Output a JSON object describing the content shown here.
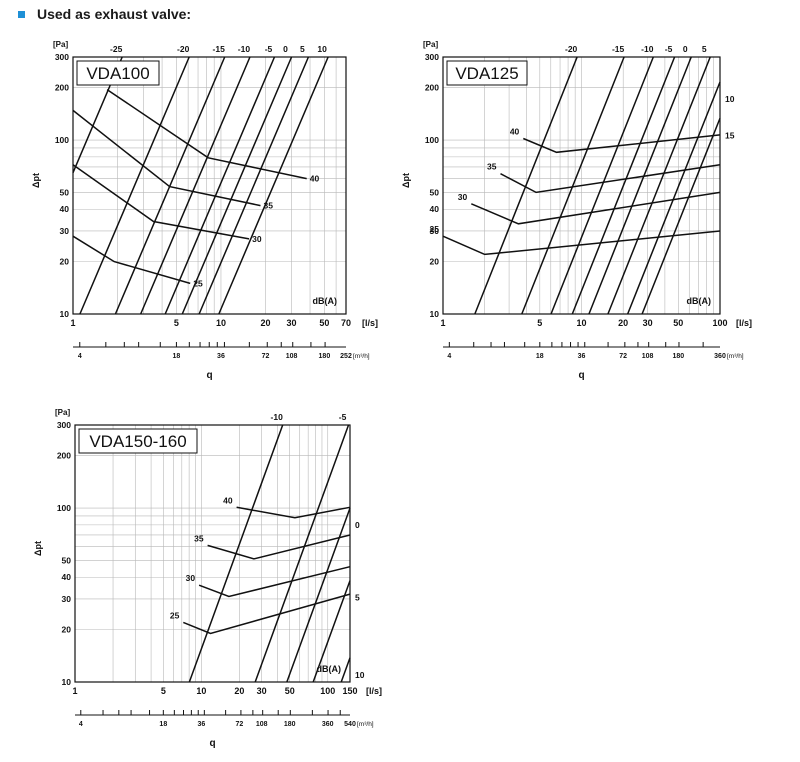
{
  "heading": {
    "text": "Used as exhaust valve:",
    "bullet_color": "#1e90d6"
  },
  "chart_data": [
    {
      "type": "line",
      "title": "VDA100",
      "y_unit": "[Pa]",
      "ylabel": "Δpt",
      "x_unit": "[l/s]",
      "x2_unit": "[m³/h]",
      "xlabel": "q",
      "dba_label": "dB(A)",
      "xlim": [
        1,
        70
      ],
      "ylim": [
        10,
        300
      ],
      "x_ticks": [
        "1",
        "5",
        "10",
        "20",
        "30",
        "50",
        "70"
      ],
      "x_tick_values": [
        1,
        5,
        10,
        20,
        30,
        50,
        70
      ],
      "y_ticks": [
        "10",
        "20",
        "30",
        "40",
        "50",
        "100",
        "200",
        "300"
      ],
      "y_tick_values": [
        10,
        20,
        30,
        40,
        50,
        100,
        200,
        300
      ],
      "m3h_ticks": [
        "4",
        "18",
        "36",
        "72",
        "108",
        "180",
        "252"
      ],
      "m3h_tick_values": [
        4,
        18,
        36,
        72,
        108,
        180,
        252
      ],
      "m3h_last_suffix": " [m³/h]",
      "characteristic_lines": [
        {
          "label": "-25",
          "q_at_300": 2.15
        },
        {
          "label": "-20",
          "q_at_300": 6.1
        },
        {
          "label": "-15",
          "q_at_300": 10.6
        },
        {
          "label": "-10",
          "q_at_300": 15.7
        },
        {
          "label": "-5",
          "q_at_300": 23
        },
        {
          "label": "0",
          "q_at_300": 30
        },
        {
          "label": "5",
          "q_at_300": 39
        },
        {
          "label": "10",
          "q_at_300": 53
        }
      ],
      "characteristic_slope": 2,
      "sound_series": [
        {
          "name": "25",
          "points": [
            [
              1,
              28
            ],
            [
              1.9,
              20
            ],
            [
              6.2,
              15
            ]
          ]
        },
        {
          "name": "30",
          "points": [
            [
              1,
              72
            ],
            [
              3.5,
              34
            ],
            [
              15.5,
              27
            ]
          ]
        },
        {
          "name": "35",
          "points": [
            [
              1,
              148
            ],
            [
              4.5,
              54
            ],
            [
              18.5,
              42
            ]
          ]
        },
        {
          "name": "40",
          "points": [
            [
              1.7,
              195
            ],
            [
              8.2,
              79
            ],
            [
              38,
              60
            ]
          ]
        }
      ]
    },
    {
      "type": "line",
      "title": "VDA125",
      "y_unit": "[Pa]",
      "ylabel": "Δpt",
      "x_unit": "[l/s]",
      "x2_unit": "[m³/h]",
      "xlabel": "q",
      "dba_label": "dB(A)",
      "xlim": [
        1,
        100
      ],
      "ylim": [
        10,
        300
      ],
      "x_ticks": [
        "1",
        "5",
        "10",
        "20",
        "30",
        "50",
        "100"
      ],
      "x_tick_values": [
        1,
        5,
        10,
        20,
        30,
        50,
        100
      ],
      "y_ticks": [
        "10",
        "20",
        "30",
        "40",
        "50",
        "100",
        "200",
        "300"
      ],
      "y_tick_values": [
        10,
        20,
        30,
        40,
        50,
        100,
        200,
        300
      ],
      "m3h_ticks": [
        "4",
        "18",
        "36",
        "72",
        "108",
        "180",
        "360"
      ],
      "m3h_tick_values": [
        4,
        18,
        36,
        72,
        108,
        180,
        360
      ],
      "m3h_last_suffix": " [m³/h]",
      "characteristic_lines": [
        {
          "label": "-20",
          "q_at_300": 9.3
        },
        {
          "label": "-15",
          "q_at_300": 20.3
        },
        {
          "label": "-10",
          "q_at_300": 33
        },
        {
          "label": "-5",
          "q_at_300": 47
        },
        {
          "label": "0",
          "q_at_300": 62
        },
        {
          "label": "5",
          "q_at_300": 85
        },
        {
          "label": "10",
          "q_at_300": 118
        },
        {
          "label": "15",
          "q_at_300": 150
        }
      ],
      "characteristic_slope": 2,
      "sound_series": [
        {
          "name": "25",
          "points": [
            [
              1,
              28
            ],
            [
              2,
              22
            ],
            [
              100,
              30
            ]
          ]
        },
        {
          "name": "30",
          "points": [
            [
              1.6,
              43
            ],
            [
              3.5,
              33
            ],
            [
              100,
              50
            ]
          ]
        },
        {
          "name": "35",
          "points": [
            [
              2.6,
              64
            ],
            [
              4.7,
              50
            ],
            [
              100,
              72
            ]
          ]
        },
        {
          "name": "40",
          "points": [
            [
              3.8,
              102
            ],
            [
              6.6,
              85
            ],
            [
              100,
              107
            ]
          ]
        }
      ]
    },
    {
      "type": "line",
      "title": "VDA150-160",
      "y_unit": "[Pa]",
      "ylabel": "Δpt",
      "x_unit": "[l/s]",
      "x2_unit": "[m³/h]",
      "xlabel": "q",
      "dba_label": "dB(A)",
      "xlim": [
        1,
        150
      ],
      "ylim": [
        10,
        300
      ],
      "x_ticks": [
        "1",
        "5",
        "10",
        "20",
        "30",
        "50",
        "100",
        "150"
      ],
      "x_tick_values": [
        1,
        5,
        10,
        20,
        30,
        50,
        100,
        150
      ],
      "y_ticks": [
        "10",
        "20",
        "30",
        "40",
        "50",
        "100",
        "200",
        "300"
      ],
      "y_tick_values": [
        10,
        20,
        30,
        40,
        50,
        100,
        200,
        300
      ],
      "m3h_ticks": [
        "4",
        "18",
        "36",
        "72",
        "108",
        "180",
        "360",
        "540"
      ],
      "m3h_tick_values": [
        4,
        18,
        36,
        72,
        108,
        180,
        360,
        540
      ],
      "m3h_last_suffix": " [m³/h]",
      "characteristic_lines": [
        {
          "label": "-10",
          "q_at_300": 44
        },
        {
          "label": "-5",
          "q_at_300": 146
        },
        {
          "label": "0",
          "q_at_300": 260
        },
        {
          "label": "5",
          "q_at_300": 420
        },
        {
          "label": "10",
          "q_at_300": 700
        }
      ],
      "characteristic_slope": 2,
      "sound_series": [
        {
          "name": "25",
          "points": [
            [
              7.2,
              22
            ],
            [
              11.8,
              19
            ],
            [
              150,
              32
            ]
          ]
        },
        {
          "name": "30",
          "points": [
            [
              9.6,
              36
            ],
            [
              16.5,
              31
            ],
            [
              150,
              46
            ]
          ]
        },
        {
          "name": "35",
          "points": [
            [
              11.2,
              61
            ],
            [
              26,
              51
            ],
            [
              150,
              70
            ]
          ]
        },
        {
          "name": "40",
          "points": [
            [
              19,
              101
            ],
            [
              55,
              88
            ],
            [
              150,
              101
            ]
          ]
        }
      ]
    }
  ]
}
